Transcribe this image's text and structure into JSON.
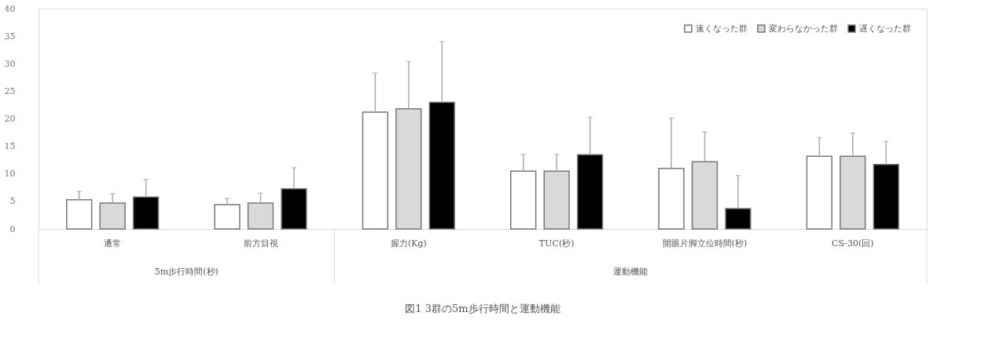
{
  "chart_data": {
    "type": "bar",
    "title": "図1 3群の5m歩行時間と運動機能",
    "categories": [
      "通常",
      "前方目視",
      "握力(Kg)",
      "TUC(秒)",
      "開眼片脚立位時間(秒)",
      "CS-30(回)"
    ],
    "annotations": [
      "5m歩行時間(秒)",
      "運動機能"
    ],
    "series": [
      {
        "name": "速くなった群",
        "color": "#ffffff",
        "values": [
          5.3,
          4.4,
          21.2,
          10.5,
          11.0,
          13.2
        ],
        "errors": [
          [
            5.3,
            6.8
          ],
          [
            4.4,
            5.5
          ],
          [
            21.2,
            28.3
          ],
          [
            10.5,
            13.5
          ],
          [
            11.0,
            20.1
          ],
          [
            13.2,
            16.6
          ]
        ]
      },
      {
        "name": "変わらなかった群",
        "color": "#d9d9d9",
        "values": [
          4.7,
          4.7,
          21.8,
          10.5,
          12.2,
          13.2
        ],
        "errors": [
          [
            4.7,
            6.4
          ],
          [
            4.7,
            6.5
          ],
          [
            21.8,
            30.4
          ],
          [
            10.5,
            13.5
          ],
          [
            12.2,
            17.6
          ],
          [
            13.2,
            17.4
          ]
        ]
      },
      {
        "name": "遅くなった群",
        "color": "#000000",
        "values": [
          5.8,
          7.3,
          23.0,
          13.5,
          3.7,
          11.7
        ],
        "errors": [
          [
            5.8,
            9.0
          ],
          [
            7.3,
            11.1
          ],
          [
            23.0,
            34.0
          ],
          [
            13.5,
            20.3
          ],
          [
            3.7,
            9.7
          ],
          [
            11.7,
            15.9
          ]
        ]
      }
    ],
    "ylim": [
      0,
      40
    ],
    "yticks": [
      0,
      5,
      10,
      15,
      20,
      25,
      30,
      35,
      40
    ],
    "grid": false,
    "legend": "top right"
  }
}
